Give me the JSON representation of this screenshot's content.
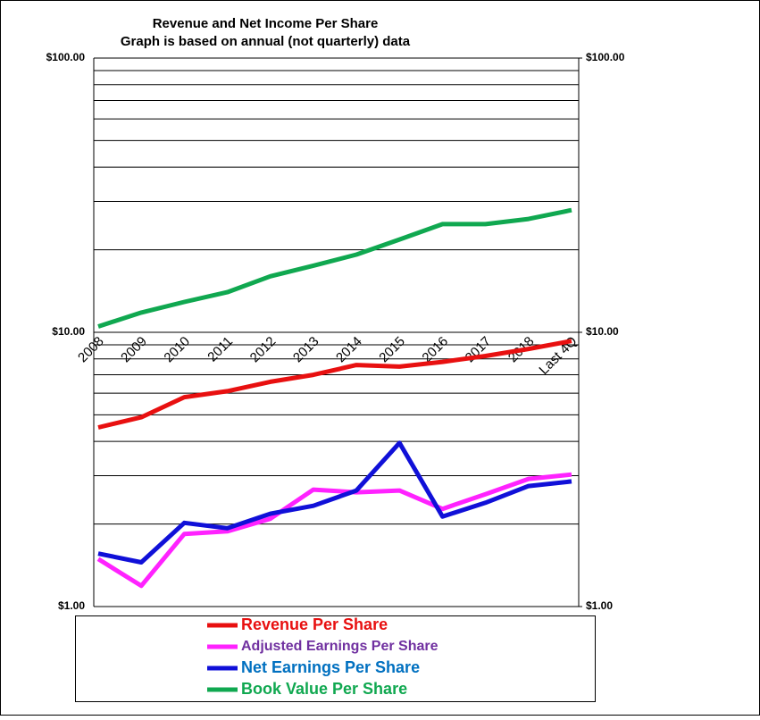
{
  "chart_data": {
    "type": "line",
    "title": "Revenue and Net Income Per Share",
    "subtitle": "Graph is based on annual (not quarterly) data",
    "categories": [
      "2008",
      "2009",
      "2010",
      "2011",
      "2012",
      "2013",
      "2014",
      "2015",
      "2016",
      "2017",
      "2018",
      "Last 4Q"
    ],
    "log_scale": true,
    "ylim": [
      1,
      100
    ],
    "yticks": [
      {
        "value": 1,
        "label": "$1.00"
      },
      {
        "value": 10,
        "label": "$10.00"
      },
      {
        "value": 100,
        "label": "$100.00"
      }
    ],
    "y2lim": [
      1,
      100
    ],
    "y2ticks": [
      {
        "value": 1,
        "label": "$1.00"
      },
      {
        "value": 10,
        "label": "$10.00"
      },
      {
        "value": 100,
        "label": "$100.00"
      }
    ],
    "minor_grid": [
      2,
      3,
      4,
      5,
      6,
      7,
      8,
      9,
      20,
      30,
      40,
      50,
      60,
      70,
      80,
      90
    ],
    "grid": true,
    "legend": "bottom",
    "series": [
      {
        "name": "Revenue Per Share",
        "color": "#e81010",
        "label_color": "#e81010",
        "values": [
          4.5,
          4.9,
          5.8,
          6.1,
          6.6,
          7.0,
          7.6,
          7.5,
          7.8,
          8.2,
          8.7,
          9.3
        ]
      },
      {
        "name": "Adjusted Earnings Per Share",
        "color": "#ff22ff",
        "label_color": "#7030a0",
        "values": [
          1.49,
          1.19,
          1.84,
          1.88,
          2.09,
          2.67,
          2.61,
          2.65,
          2.27,
          2.57,
          2.92,
          3.03
        ]
      },
      {
        "name": "Net Earnings Per Share",
        "color": "#1010d8",
        "label_color": "#0070c0",
        "values": [
          1.56,
          1.45,
          2.02,
          1.93,
          2.18,
          2.33,
          2.65,
          3.95,
          2.13,
          2.39,
          2.75,
          2.86
        ]
      },
      {
        "name": "Book Value Per Share",
        "color": "#10a850",
        "label_color": "#10a850",
        "values": [
          10.5,
          11.8,
          12.9,
          14.0,
          16.0,
          17.5,
          19.2,
          21.8,
          24.8,
          24.8,
          25.9,
          27.9
        ]
      }
    ]
  }
}
